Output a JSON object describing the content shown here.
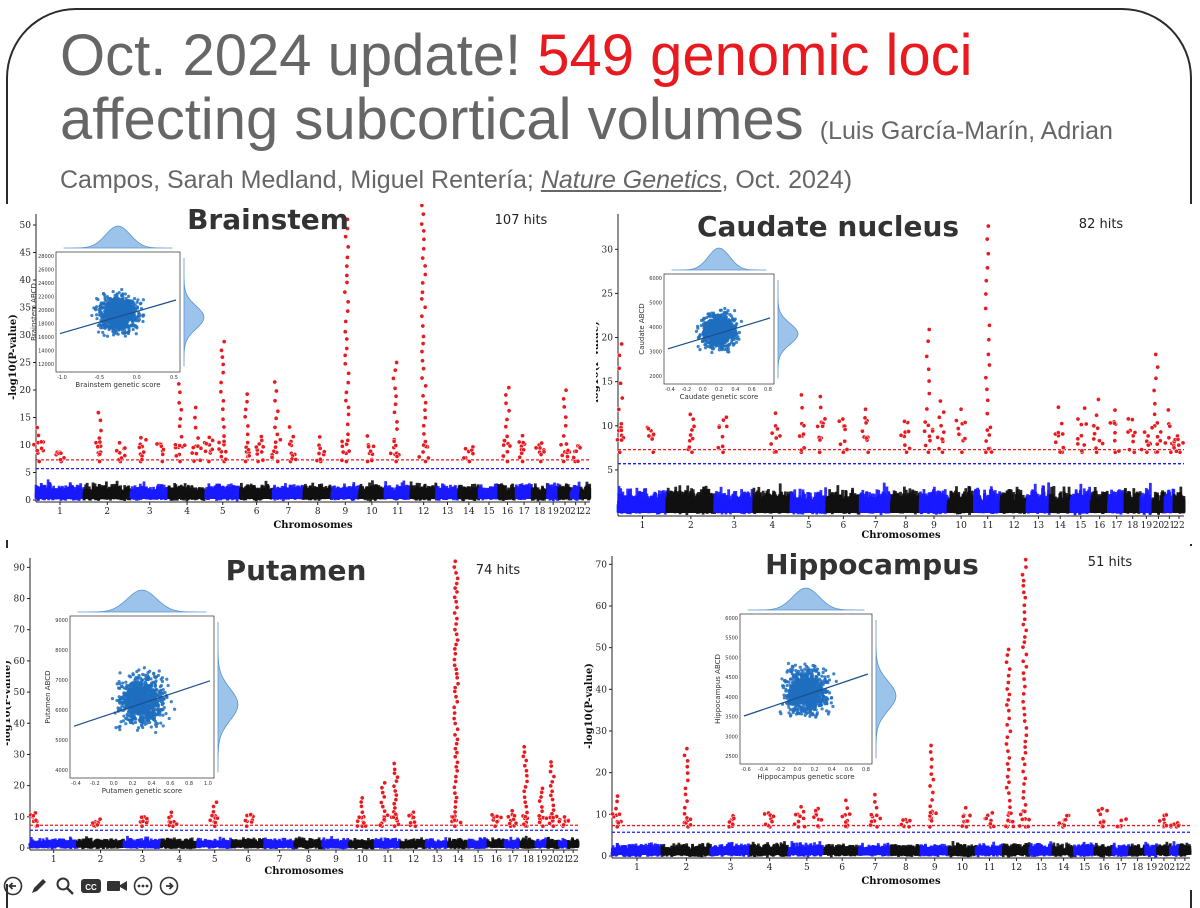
{
  "slide": {
    "title_part1": "Oct. 2024 update! ",
    "title_highlight": "549 genomic loci",
    "title_line2": "affecting subcortical volumes",
    "citation_authors_line1": "(Luis García-Marín, Adrian",
    "citation_authors_line2": "Campos, Sarah Medland, Miguel Rentería; ",
    "citation_journal": "Nature Genetics",
    "citation_date": ", Oct. 2024)"
  },
  "colors": {
    "accent_red": "#e8191f",
    "blue": "#1a1aff",
    "black": "#111111",
    "scatter": "#1f6fc0",
    "kde": "#9cc3ea"
  },
  "toolbar": {
    "icons": [
      "back-arrow-icon",
      "pen-icon",
      "magnifier-icon",
      "captions-icon",
      "camera-icon",
      "more-icon",
      "forward-arrow-icon"
    ],
    "cc_label": "CC"
  },
  "chart_data": [
    {
      "type": "scatter",
      "subtype": "manhattan",
      "title": "Brainstem",
      "hits_label": "107 hits",
      "ylabel": "-log10(P-value)",
      "xlabel": "Chromosomes",
      "ylim": [
        0,
        52
      ],
      "yticks": [
        0,
        5,
        10,
        15,
        20,
        25,
        30,
        35,
        40,
        45,
        50
      ],
      "categories": [
        "1",
        "2",
        "3",
        "4",
        "5",
        "6",
        "7",
        "8",
        "9",
        "10",
        "11",
        "12",
        "13",
        "14",
        "15",
        "16",
        "17",
        "18",
        "19",
        "20",
        "21",
        "22"
      ],
      "peaks": [
        {
          "chr": "1",
          "pos": 0.05,
          "y": 14
        },
        {
          "chr": "1",
          "pos": 0.5,
          "y": 9
        },
        {
          "chr": "2",
          "pos": 0.35,
          "y": 16
        },
        {
          "chr": "2",
          "pos": 0.8,
          "y": 12
        },
        {
          "chr": "3",
          "pos": 0.3,
          "y": 12
        },
        {
          "chr": "3",
          "pos": 0.8,
          "y": 11
        },
        {
          "chr": "4",
          "pos": 0.3,
          "y": 22
        },
        {
          "chr": "4",
          "pos": 0.75,
          "y": 17
        },
        {
          "chr": "5",
          "pos": 0.5,
          "y": 30
        },
        {
          "chr": "5",
          "pos": 0.1,
          "y": 13
        },
        {
          "chr": "6",
          "pos": 0.2,
          "y": 20
        },
        {
          "chr": "6",
          "pos": 0.6,
          "y": 12
        },
        {
          "chr": "7",
          "pos": 0.1,
          "y": 22
        },
        {
          "chr": "7",
          "pos": 0.6,
          "y": 15
        },
        {
          "chr": "8",
          "pos": 0.6,
          "y": 12
        },
        {
          "chr": "9",
          "pos": 0.55,
          "y": 52
        },
        {
          "chr": "10",
          "pos": 0.4,
          "y": 13
        },
        {
          "chr": "11",
          "pos": 0.4,
          "y": 25
        },
        {
          "chr": "12",
          "pos": 0.5,
          "y": 54
        },
        {
          "chr": "14",
          "pos": 0.5,
          "y": 10
        },
        {
          "chr": "16",
          "pos": 0.5,
          "y": 22
        },
        {
          "chr": "17",
          "pos": 0.4,
          "y": 13
        },
        {
          "chr": "18",
          "pos": 0.5,
          "y": 11
        },
        {
          "chr": "20",
          "pos": 0.5,
          "y": 21
        },
        {
          "chr": "21",
          "pos": 0.5,
          "y": 10
        }
      ],
      "significance_lines": [
        7.3,
        5.7
      ],
      "inset": {
        "type": "scatter",
        "xlabel": "Brainstem genetic score",
        "ylabel": "Brainstem ABCD",
        "xticks": [
          "-1.0",
          "-0.5",
          "0.0",
          "0.5"
        ],
        "yticks": [
          "12000",
          "14000",
          "16000",
          "18000",
          "20000",
          "22000",
          "24000",
          "26000",
          "28000"
        ]
      }
    },
    {
      "type": "scatter",
      "subtype": "manhattan",
      "title": "Caudate nucleus",
      "hits_label": "82 hits",
      "ylabel": "-log10(P-value)",
      "xlabel": "Chromosomes",
      "ylim": [
        0,
        34
      ],
      "yticks": [
        5,
        10,
        15,
        20,
        25,
        30
      ],
      "categories": [
        "1",
        "2",
        "3",
        "4",
        "5",
        "6",
        "7",
        "8",
        "9",
        "10",
        "11",
        "12",
        "13",
        "14",
        "15",
        "16",
        "17",
        "18",
        "19",
        "20",
        "21",
        "22"
      ],
      "peaks": [
        {
          "chr": "1",
          "pos": 0.05,
          "y": 20
        },
        {
          "chr": "1",
          "pos": 0.7,
          "y": 10
        },
        {
          "chr": "2",
          "pos": 0.5,
          "y": 12
        },
        {
          "chr": "3",
          "pos": 0.2,
          "y": 11
        },
        {
          "chr": "4",
          "pos": 0.6,
          "y": 12
        },
        {
          "chr": "5",
          "pos": 0.3,
          "y": 15
        },
        {
          "chr": "5",
          "pos": 0.85,
          "y": 14
        },
        {
          "chr": "6",
          "pos": 0.5,
          "y": 11
        },
        {
          "chr": "7",
          "pos": 0.2,
          "y": 12
        },
        {
          "chr": "8",
          "pos": 0.5,
          "y": 11
        },
        {
          "chr": "9",
          "pos": 0.3,
          "y": 21
        },
        {
          "chr": "9",
          "pos": 0.8,
          "y": 13
        },
        {
          "chr": "10",
          "pos": 0.5,
          "y": 13
        },
        {
          "chr": "11",
          "pos": 0.5,
          "y": 34
        },
        {
          "chr": "14",
          "pos": 0.5,
          "y": 13
        },
        {
          "chr": "15",
          "pos": 0.6,
          "y": 12
        },
        {
          "chr": "16",
          "pos": 0.4,
          "y": 14
        },
        {
          "chr": "17",
          "pos": 0.4,
          "y": 13
        },
        {
          "chr": "18",
          "pos": 0.5,
          "y": 11
        },
        {
          "chr": "19",
          "pos": 0.5,
          "y": 10
        },
        {
          "chr": "20",
          "pos": 0.3,
          "y": 19
        },
        {
          "chr": "21",
          "pos": 0.5,
          "y": 13
        },
        {
          "chr": "22",
          "pos": 0.5,
          "y": 10
        }
      ],
      "significance_lines": [
        7.3,
        5.7
      ],
      "inset": {
        "type": "scatter",
        "xlabel": "Caudate genetic score",
        "ylabel": "Caudate ABCD",
        "xticks": [
          "-0.4",
          "-0.2",
          "0.0",
          "0.2",
          "0.4",
          "0.6",
          "0.8"
        ],
        "yticks": [
          "2000",
          "3000",
          "4000",
          "5000",
          "6000"
        ]
      }
    },
    {
      "type": "scatter",
      "subtype": "manhattan",
      "title": "Putamen",
      "hits_label": "74 hits",
      "ylabel": "-log10(P-value)",
      "xlabel": "Chromosomes",
      "ylim": [
        0,
        93
      ],
      "yticks": [
        0,
        10,
        20,
        30,
        40,
        50,
        60,
        70,
        80,
        90
      ],
      "categories": [
        "1",
        "2",
        "3",
        "4",
        "5",
        "6",
        "7",
        "8",
        "9",
        "10",
        "11",
        "12",
        "13",
        "14",
        "15",
        "16",
        "17",
        "18",
        "19",
        "20",
        "21",
        "22"
      ],
      "peaks": [
        {
          "chr": "1",
          "pos": 0.1,
          "y": 12
        },
        {
          "chr": "2",
          "pos": 0.4,
          "y": 10
        },
        {
          "chr": "3",
          "pos": 0.5,
          "y": 10
        },
        {
          "chr": "4",
          "pos": 0.3,
          "y": 13
        },
        {
          "chr": "5",
          "pos": 0.5,
          "y": 16
        },
        {
          "chr": "6",
          "pos": 0.5,
          "y": 11
        },
        {
          "chr": "10",
          "pos": 0.5,
          "y": 17
        },
        {
          "chr": "11",
          "pos": 0.3,
          "y": 22
        },
        {
          "chr": "11",
          "pos": 0.8,
          "y": 28
        },
        {
          "chr": "12",
          "pos": 0.5,
          "y": 12
        },
        {
          "chr": "14",
          "pos": 0.4,
          "y": 93
        },
        {
          "chr": "16",
          "pos": 0.5,
          "y": 11
        },
        {
          "chr": "17",
          "pos": 0.4,
          "y": 12
        },
        {
          "chr": "18",
          "pos": 0.3,
          "y": 33
        },
        {
          "chr": "19",
          "pos": 0.5,
          "y": 20
        },
        {
          "chr": "20",
          "pos": 0.4,
          "y": 29
        },
        {
          "chr": "21",
          "pos": 0.5,
          "y": 10
        }
      ],
      "significance_lines": [
        7.3,
        5.7
      ],
      "inset": {
        "type": "scatter",
        "xlabel": "Putamen genetic score",
        "ylabel": "Putamen ABCD",
        "xticks": [
          "-0.4",
          "-0.2",
          "0.0",
          "0.2",
          "0.4",
          "0.6",
          "0.8",
          "1.0"
        ],
        "yticks": [
          "4000",
          "5000",
          "6000",
          "7000",
          "8000",
          "9000"
        ]
      }
    },
    {
      "type": "scatter",
      "subtype": "manhattan",
      "title": "Hippocampus",
      "hits_label": "51 hits",
      "ylabel": "-log10(P-value)",
      "xlabel": "Chromosomes",
      "ylim": [
        0,
        72
      ],
      "yticks": [
        0,
        10,
        20,
        30,
        40,
        50,
        60,
        70
      ],
      "categories": [
        "1",
        "2",
        "3",
        "4",
        "5",
        "6",
        "7",
        "8",
        "9",
        "10",
        "11",
        "12",
        "13",
        "14",
        "15",
        "16",
        "17",
        "18",
        "19",
        "20",
        "21",
        "22"
      ],
      "peaks": [
        {
          "chr": "1",
          "pos": 0.1,
          "y": 15
        },
        {
          "chr": "2",
          "pos": 0.5,
          "y": 27
        },
        {
          "chr": "3",
          "pos": 0.5,
          "y": 10
        },
        {
          "chr": "4",
          "pos": 0.5,
          "y": 11
        },
        {
          "chr": "5",
          "pos": 0.3,
          "y": 13
        },
        {
          "chr": "5",
          "pos": 0.8,
          "y": 12
        },
        {
          "chr": "6",
          "pos": 0.6,
          "y": 15
        },
        {
          "chr": "7",
          "pos": 0.5,
          "y": 15
        },
        {
          "chr": "8",
          "pos": 0.5,
          "y": 9
        },
        {
          "chr": "9",
          "pos": 0.4,
          "y": 27
        },
        {
          "chr": "10",
          "pos": 0.6,
          "y": 13
        },
        {
          "chr": "11",
          "pos": 0.5,
          "y": 11
        },
        {
          "chr": "12",
          "pos": 0.2,
          "y": 50
        },
        {
          "chr": "12",
          "pos": 0.8,
          "y": 72
        },
        {
          "chr": "14",
          "pos": 0.5,
          "y": 10
        },
        {
          "chr": "16",
          "pos": 0.4,
          "y": 12
        },
        {
          "chr": "17",
          "pos": 0.5,
          "y": 9
        },
        {
          "chr": "20",
          "pos": 0.5,
          "y": 10
        },
        {
          "chr": "21",
          "pos": 0.5,
          "y": 8
        }
      ],
      "significance_lines": [
        7.3,
        5.7
      ],
      "inset": {
        "type": "scatter",
        "xlabel": "Hippocampus genetic score",
        "ylabel": "Hippocampus ABCD",
        "xticks": [
          "-0.6",
          "-0.4",
          "-0.2",
          "0.0",
          "0.2",
          "0.4",
          "0.6",
          "0.8"
        ],
        "yticks": [
          "2500",
          "3000",
          "3500",
          "4000",
          "4500",
          "5000",
          "5500",
          "6000"
        ]
      }
    }
  ]
}
